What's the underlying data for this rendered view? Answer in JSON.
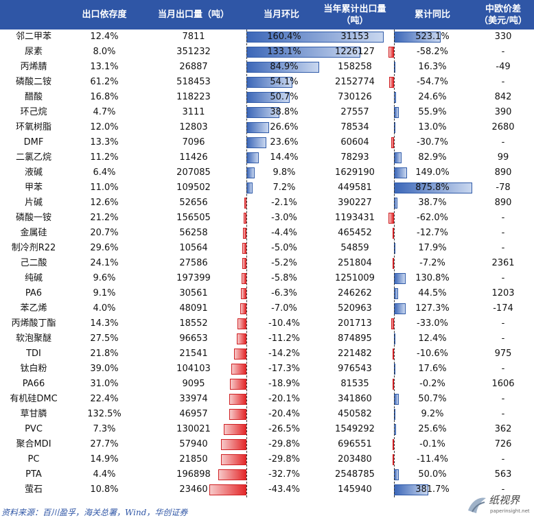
{
  "headers": [
    "",
    "出口依存度",
    "当月出口量（吨）",
    "当月环比",
    "当年累计出口量\n（吨）",
    "累计同比",
    "中欧价差\n（美元/吨）"
  ],
  "rows": [
    [
      "邻二甲苯",
      "12.4%",
      "7811",
      160.4,
      "31153",
      523.1,
      "330"
    ],
    [
      "尿素",
      "8.0%",
      "351232",
      133.1,
      "1226127",
      -58.2,
      "-"
    ],
    [
      "丙烯腈",
      "13.1%",
      "26887",
      84.9,
      "158258",
      16.3,
      "-49"
    ],
    [
      "磷酸二铵",
      "61.2%",
      "518453",
      54.1,
      "2152774",
      -54.7,
      "-"
    ],
    [
      "醋酸",
      "16.8%",
      "118223",
      50.7,
      "730126",
      24.6,
      "842"
    ],
    [
      "环己烷",
      "4.7%",
      "3111",
      38.8,
      "27557",
      55.9,
      "390"
    ],
    [
      "环氧树脂",
      "12.0%",
      "12803",
      26.6,
      "78534",
      13.0,
      "2680"
    ],
    [
      "DMF",
      "13.3%",
      "7096",
      23.6,
      "60604",
      -30.7,
      "-"
    ],
    [
      "二氯乙烷",
      "11.2%",
      "11426",
      14.4,
      "78293",
      82.9,
      "99"
    ],
    [
      "液碱",
      "6.4%",
      "207085",
      9.8,
      "1629190",
      149.0,
      "890"
    ],
    [
      "甲苯",
      "11.0%",
      "109502",
      7.2,
      "449581",
      875.8,
      "-78"
    ],
    [
      "片碱",
      "12.6%",
      "52656",
      -2.1,
      "390227",
      38.7,
      "890"
    ],
    [
      "磷酸一铵",
      "21.2%",
      "156505",
      -3.0,
      "1193431",
      -62.0,
      "-"
    ],
    [
      "金属硅",
      "20.7%",
      "56258",
      -4.4,
      "465452",
      -12.7,
      "-"
    ],
    [
      "制冷剂R22",
      "29.6%",
      "10564",
      -5.0,
      "54859",
      17.9,
      "-"
    ],
    [
      "己二酸",
      "24.1%",
      "27586",
      -5.2,
      "251804",
      -7.2,
      "2361"
    ],
    [
      "纯碱",
      "9.6%",
      "197399",
      -5.8,
      "1251009",
      130.8,
      "-"
    ],
    [
      "PA6",
      "9.1%",
      "30561",
      -6.3,
      "246262",
      44.5,
      "1203"
    ],
    [
      "苯乙烯",
      "4.0%",
      "48091",
      -7.0,
      "520963",
      127.3,
      "-174"
    ],
    [
      "丙烯酸丁酯",
      "14.3%",
      "18552",
      -10.4,
      "201713",
      -33.0,
      "-"
    ],
    [
      "软泡聚醚",
      "27.5%",
      "96653",
      -11.2,
      "874895",
      12.4,
      "-"
    ],
    [
      "TDI",
      "21.8%",
      "21541",
      -14.2,
      "221482",
      -10.6,
      "975"
    ],
    [
      "钛白粉",
      "39.0%",
      "104103",
      -17.3,
      "976543",
      17.6,
      "-"
    ],
    [
      "PA66",
      "31.0%",
      "9095",
      -18.9,
      "81535",
      -0.2,
      "1606"
    ],
    [
      "有机硅DMC",
      "22.4%",
      "33974",
      -20.1,
      "341860",
      50.7,
      "-"
    ],
    [
      "草甘膦",
      "132.5%",
      "46957",
      -20.4,
      "450582",
      9.2,
      "-"
    ],
    [
      "PVC",
      "7.3%",
      "130021",
      -26.5,
      "1549292",
      25.6,
      "362"
    ],
    [
      "聚合MDI",
      "27.7%",
      "57940",
      -29.8,
      "696551",
      -0.1,
      "726"
    ],
    [
      "PC",
      "14.9%",
      "21850",
      -29.8,
      "203480",
      -11.4,
      "-"
    ],
    [
      "PTA",
      "4.4%",
      "196898",
      -32.7,
      "2548785",
      50.0,
      "563"
    ],
    [
      "萤石",
      "10.8%",
      "23460",
      -43.4,
      "145940",
      381.7,
      "-"
    ]
  ],
  "footnote": "资料来源：百川盈孚，海关总署，Wind，华创证券",
  "watermark": {
    "brand": "纸视界",
    "url": "paperinsight.net"
  }
}
